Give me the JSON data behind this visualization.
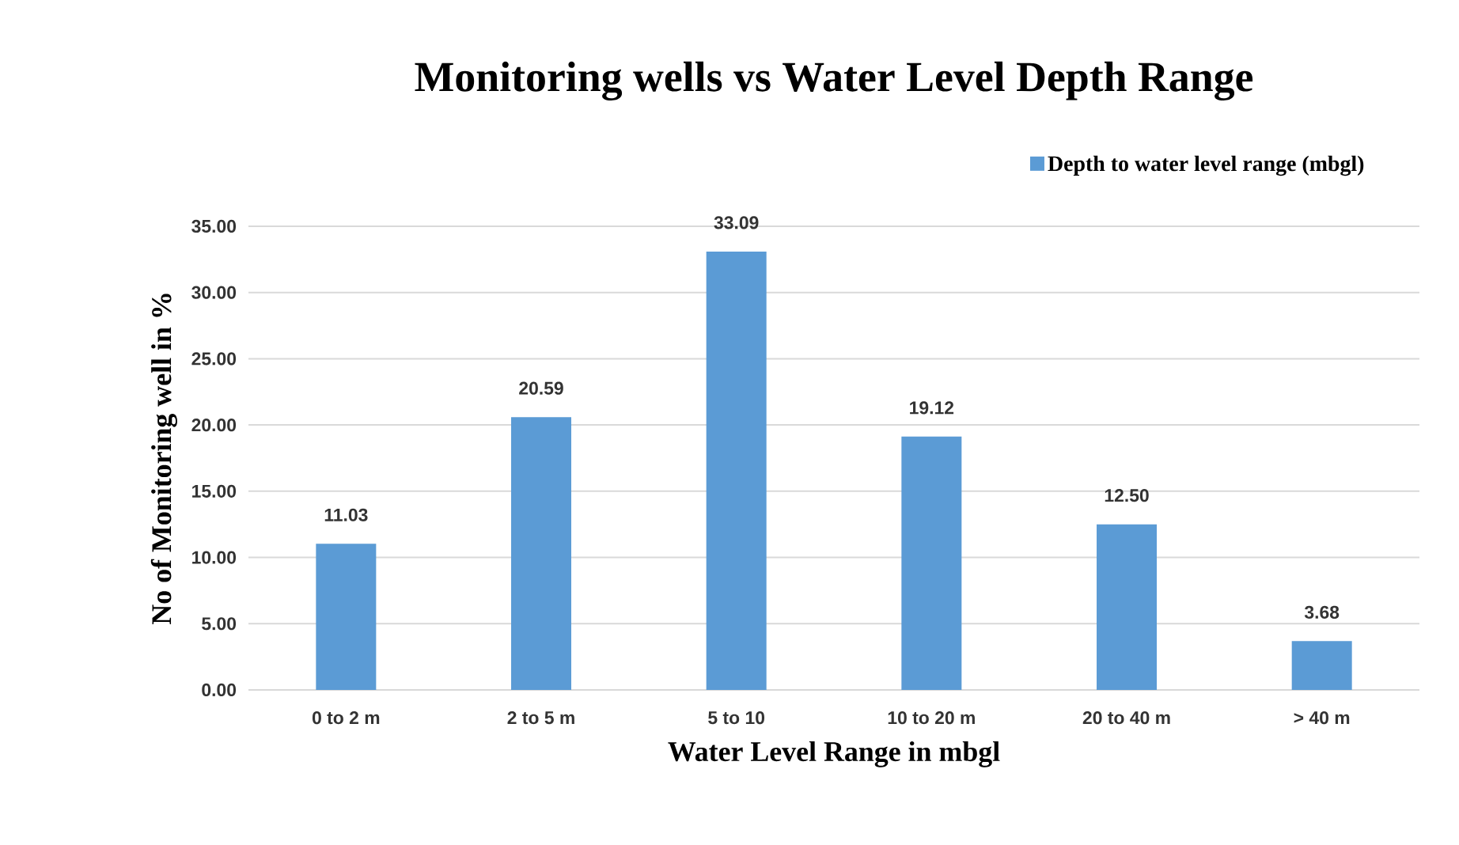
{
  "chart_data": {
    "type": "bar",
    "title": "Monitoring wells vs Water Level Depth Range",
    "xlabel": "Water Level Range in mbgl",
    "ylabel": "No of Monitoring well in %",
    "categories": [
      "0 to 2 m",
      "2 to 5 m",
      "5 to 10",
      "10 to 20 m",
      "20 to 40 m",
      "> 40 m"
    ],
    "series": [
      {
        "name": "Depth to water level range (mbgl)",
        "color": "#5b9bd5",
        "values": [
          11.03,
          20.59,
          33.09,
          19.12,
          12.5,
          3.68
        ],
        "value_labels": [
          "11.03",
          "20.59",
          "33.09",
          "19.12",
          "12.50",
          "3.68"
        ]
      }
    ],
    "ylim": [
      0,
      35
    ],
    "yticks": [
      {
        "value": 0,
        "label": "0.00"
      },
      {
        "value": 5,
        "label": "5.00"
      },
      {
        "value": 10,
        "label": "10.00"
      },
      {
        "value": 15,
        "label": "15.00"
      },
      {
        "value": 20,
        "label": "20.00"
      },
      {
        "value": 25,
        "label": "25.00"
      },
      {
        "value": 30,
        "label": "30.00"
      },
      {
        "value": 35,
        "label": "35.00"
      }
    ],
    "grid": "y",
    "legend": "top right"
  }
}
